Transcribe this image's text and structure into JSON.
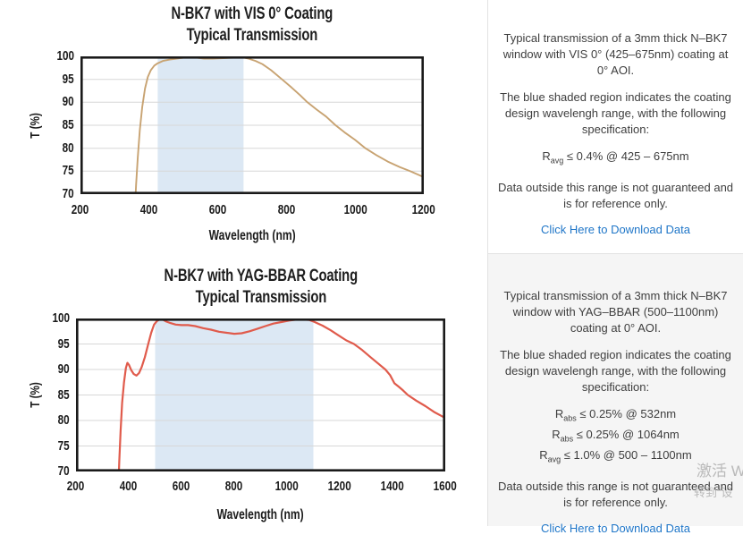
{
  "colors": {
    "link": "#1f76c8",
    "gray_cell_bg": "#f5f5f5",
    "grid_border": "#e3e3e3",
    "plot_border": "#1a1a1a",
    "gridline": "#d7d7d7"
  },
  "chart_data": [
    {
      "type": "line",
      "title": "N-BK7 with VIS 0° Coating",
      "subtitle": "Typical Transmission",
      "xlabel": "Wavelength (nm)",
      "ylabel": "T (%)",
      "xlim": [
        200,
        1200
      ],
      "ylim": [
        70,
        100
      ],
      "xticks": [
        200,
        400,
        600,
        800,
        1000,
        1200
      ],
      "yticks": [
        70,
        75,
        80,
        85,
        90,
        95,
        100
      ],
      "grid": "horizontal",
      "legend": "none",
      "line_color": "#c8a372",
      "shaded_region": {
        "x0": 425,
        "x1": 675,
        "color": "#dce8f4",
        "meaning": "coating design wavelength range"
      },
      "series": [
        {
          "name": "Transmission",
          "points": [
            [
              358,
              66
            ],
            [
              362,
              72
            ],
            [
              367,
              78
            ],
            [
              373,
              84
            ],
            [
              380,
              89
            ],
            [
              388,
              93
            ],
            [
              396,
              95.5
            ],
            [
              405,
              97
            ],
            [
              415,
              98
            ],
            [
              425,
              98.5
            ],
            [
              440,
              99
            ],
            [
              460,
              99.3
            ],
            [
              480,
              99.5
            ],
            [
              500,
              99.7
            ],
            [
              520,
              99.8
            ],
            [
              540,
              99.7
            ],
            [
              560,
              99.5
            ],
            [
              585,
              99.5
            ],
            [
              615,
              99.6
            ],
            [
              645,
              99.7
            ],
            [
              670,
              99.8
            ],
            [
              690,
              99.5
            ],
            [
              710,
              99
            ],
            [
              730,
              98.3
            ],
            [
              755,
              97
            ],
            [
              787,
              95
            ],
            [
              815,
              93.2
            ],
            [
              840,
              91.5
            ],
            [
              861,
              90
            ],
            [
              888,
              88.4
            ],
            [
              915,
              86.9
            ],
            [
              943,
              85
            ],
            [
              972,
              83.3
            ],
            [
              1000,
              81.8
            ],
            [
              1030,
              80
            ],
            [
              1062,
              78.5
            ],
            [
              1095,
              77.1
            ],
            [
              1130,
              75.9
            ],
            [
              1160,
              75
            ],
            [
              1200,
              73.7
            ]
          ]
        }
      ]
    },
    {
      "type": "line",
      "title": "N-BK7 with YAG-BBAR Coating",
      "subtitle": "Typical Transmission",
      "xlabel": "Wavelength (nm)",
      "ylabel": "T (%)",
      "xlim": [
        200,
        1600
      ],
      "ylim": [
        70,
        100
      ],
      "xticks": [
        200,
        400,
        600,
        800,
        1000,
        1200,
        1400,
        1600
      ],
      "yticks": [
        70,
        75,
        80,
        85,
        90,
        95,
        100
      ],
      "grid": "horizontal",
      "legend": "none",
      "line_color": "#e05b4c",
      "shaded_region": {
        "x0": 500,
        "x1": 1100,
        "color": "#dce8f4",
        "meaning": "coating design wavelength range"
      },
      "series": [
        {
          "name": "Transmission",
          "points": [
            [
              360,
              66
            ],
            [
              364,
              72
            ],
            [
              369,
              78
            ],
            [
              375,
              83.5
            ],
            [
              382,
              87.5
            ],
            [
              389,
              90.3
            ],
            [
              395,
              91.3
            ],
            [
              401,
              90.9
            ],
            [
              409,
              89.9
            ],
            [
              419,
              89.1
            ],
            [
              429,
              88.8
            ],
            [
              439,
              89.3
            ],
            [
              449,
              90.5
            ],
            [
              461,
              92.4
            ],
            [
              473,
              94.8
            ],
            [
              485,
              97.2
            ],
            [
              496,
              98.8
            ],
            [
              507,
              99.5
            ],
            [
              517,
              99.8
            ],
            [
              528,
              99.8
            ],
            [
              542,
              99.4
            ],
            [
              558,
              99.1
            ],
            [
              578,
              98.8
            ],
            [
              600,
              98.7
            ],
            [
              625,
              98.7
            ],
            [
              652,
              98.5
            ],
            [
              682,
              98.1
            ],
            [
              712,
              97.8
            ],
            [
              742,
              97.4
            ],
            [
              772,
              97.2
            ],
            [
              800,
              97
            ],
            [
              828,
              97.1
            ],
            [
              858,
              97.5
            ],
            [
              888,
              98
            ],
            [
              918,
              98.5
            ],
            [
              948,
              99
            ],
            [
              978,
              99.3
            ],
            [
              1008,
              99.6
            ],
            [
              1038,
              99.8
            ],
            [
              1062,
              99.8
            ],
            [
              1085,
              99.7
            ],
            [
              1105,
              99.3
            ],
            [
              1135,
              98.6
            ],
            [
              1165,
              97.7
            ],
            [
              1195,
              96.7
            ],
            [
              1225,
              95.7
            ],
            [
              1254,
              95
            ],
            [
              1285,
              93.8
            ],
            [
              1315,
              92.5
            ],
            [
              1345,
              91.2
            ],
            [
              1373,
              90
            ],
            [
              1391,
              88.9
            ],
            [
              1407,
              87.3
            ],
            [
              1424,
              86.6
            ],
            [
              1440,
              85.9
            ],
            [
              1458,
              85
            ],
            [
              1490,
              83.9
            ],
            [
              1525,
              82.8
            ],
            [
              1560,
              81.6
            ],
            [
              1600,
              80.5
            ]
          ]
        }
      ]
    }
  ],
  "panels": [
    {
      "paragraphs": [
        "Typical transmission of a 3mm thick N–BK7 window with VIS 0° (425–675nm) coating at 0° AOI.",
        "The blue shaded region indicates the coating design wavelengh range, with the following specification:"
      ],
      "specs": [
        {
          "base": "R",
          "sub": "avg",
          "rest": " ≤ 0.4% @ 425 – 675nm"
        }
      ],
      "note": "Data outside this range is not guaranteed and is for reference only.",
      "link": "Click Here to Download Data"
    },
    {
      "paragraphs": [
        "Typical transmission of a 3mm thick N–BK7 window with YAG–BBAR (500–1100nm) coating at 0° AOI.",
        "The blue shaded region indicates the coating design wavelengh range, with the following specification:"
      ],
      "specs": [
        {
          "base": "R",
          "sub": "abs",
          "rest": " ≤ 0.25% @ 532nm"
        },
        {
          "base": "R",
          "sub": "abs",
          "rest": " ≤ 0.25% @ 1064nm"
        },
        {
          "base": "R",
          "sub": "avg",
          "rest": " ≤ 1.0% @ 500 – 1100nm"
        }
      ],
      "note": "Data outside this range is not guaranteed and is for reference only.",
      "link": "Click Here to Download Data"
    }
  ],
  "watermark": {
    "line1": "激活 W",
    "line2": "转到“设"
  }
}
